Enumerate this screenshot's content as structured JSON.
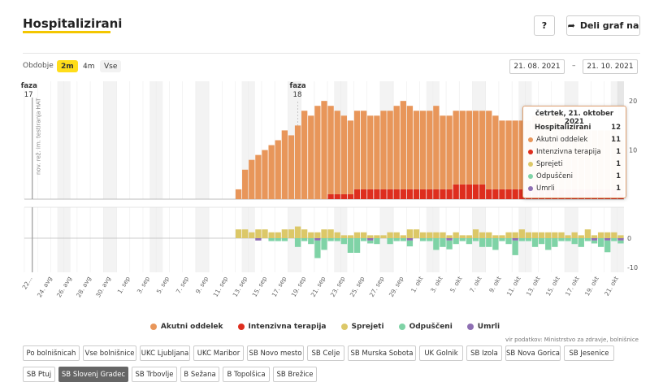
{
  "header": {
    "title": "Hospitalizirani",
    "help_label": "?",
    "share_label": "Deli graf na"
  },
  "controls": {
    "period_label": "Obdobje",
    "periods": [
      "2m",
      "4m",
      "Vse"
    ],
    "date_from": "21. 08. 2021",
    "date_sep": "–",
    "date_to": "21. 10. 2021"
  },
  "annotations": {
    "faza17": "faza 17",
    "faza18": "faza 18",
    "vertical_note": "nov. rež. im. testiranja HAT"
  },
  "colors": {
    "akutni": "#e8965a",
    "intenzivna": "#de2e1e",
    "sprejeti": "#dcc868",
    "odpusceni": "#7fd3a6",
    "umrli": "#8e6fb3"
  },
  "chart_data": {
    "type": "bar",
    "x_labels": [
      "22...",
      "24. avg",
      "26. avg",
      "28. avg",
      "30. avg",
      "1. sep",
      "3. sep",
      "5. sep",
      "7. sep",
      "9. sep",
      "11. sep",
      "13. sep",
      "15. sep",
      "17. sep",
      "19. sep",
      "21. sep",
      "23. sep",
      "25. sep",
      "27. sep",
      "29. sep",
      "1. okt",
      "3. okt",
      "5. okt",
      "7. okt",
      "9. okt",
      "11. okt",
      "13. okt",
      "15. okt",
      "17. okt",
      "19. okt",
      "21. okt"
    ],
    "upper": {
      "y_ticks": [
        0,
        10,
        20
      ],
      "ylim": [
        0,
        20
      ],
      "series": [
        {
          "name": "Akutni oddelek",
          "values": [
            0,
            0,
            0,
            0,
            0,
            0,
            0,
            0,
            0,
            0,
            0,
            0,
            0,
            0,
            0,
            0,
            0,
            0,
            0,
            0,
            0,
            0,
            0,
            0,
            0,
            0,
            0,
            0,
            0,
            0,
            0,
            0,
            2,
            6,
            8,
            9,
            10,
            11,
            12,
            14,
            13,
            15,
            18,
            17,
            19,
            20,
            18,
            17,
            16,
            15,
            16,
            16,
            15,
            15,
            16,
            16,
            17,
            18,
            17,
            16,
            16,
            16,
            17,
            15,
            15,
            15,
            15,
            15,
            15,
            15,
            16,
            15,
            14,
            14,
            14,
            14,
            14,
            15,
            15,
            15,
            16,
            15,
            14,
            13,
            13,
            12,
            12,
            12,
            12,
            12,
            11
          ]
        },
        {
          "name": "Intenzivna terapija",
          "values": [
            0,
            0,
            0,
            0,
            0,
            0,
            0,
            0,
            0,
            0,
            0,
            0,
            0,
            0,
            0,
            0,
            0,
            0,
            0,
            0,
            0,
            0,
            0,
            0,
            0,
            0,
            0,
            0,
            0,
            0,
            0,
            0,
            0,
            0,
            0,
            0,
            0,
            0,
            0,
            0,
            0,
            0,
            0,
            0,
            0,
            0,
            1,
            1,
            1,
            1,
            2,
            2,
            2,
            2,
            2,
            2,
            2,
            2,
            2,
            2,
            2,
            2,
            2,
            2,
            2,
            3,
            3,
            3,
            3,
            3,
            2,
            2,
            2,
            2,
            2,
            2,
            2,
            2,
            2,
            2,
            2,
            2,
            2,
            2,
            2,
            2,
            2,
            2,
            2,
            2,
            1
          ]
        }
      ]
    },
    "lower": {
      "y_ticks": [
        0,
        -10
      ],
      "series": [
        {
          "name": "Sprejeti",
          "values": [
            0,
            0,
            0,
            0,
            0,
            0,
            0,
            0,
            0,
            0,
            0,
            0,
            0,
            0,
            0,
            0,
            0,
            0,
            0,
            0,
            0,
            0,
            0,
            0,
            0,
            0,
            0,
            0,
            0,
            0,
            0,
            0,
            3,
            3,
            2,
            3,
            3,
            2,
            2,
            3,
            3,
            4,
            3,
            2,
            2,
            3,
            3,
            2,
            1,
            1,
            2,
            2,
            1,
            1,
            1,
            2,
            2,
            1,
            3,
            3,
            2,
            2,
            2,
            2,
            1,
            2,
            1,
            1,
            3,
            2,
            2,
            1,
            1,
            2,
            2,
            3,
            2,
            2,
            2,
            2,
            2,
            2,
            1,
            2,
            1,
            3,
            1,
            2,
            2,
            2,
            1
          ]
        },
        {
          "name": "Odpuščeni",
          "values": [
            0,
            0,
            0,
            0,
            0,
            0,
            0,
            0,
            0,
            0,
            0,
            0,
            0,
            0,
            0,
            0,
            0,
            0,
            0,
            0,
            0,
            0,
            0,
            0,
            0,
            0,
            0,
            0,
            0,
            0,
            0,
            0,
            0,
            0,
            0,
            0,
            0,
            -1,
            -1,
            -1,
            0,
            -3,
            -1,
            -2,
            -6,
            -4,
            -1,
            -1,
            -2,
            -5,
            -5,
            -1,
            -1,
            -2,
            0,
            -2,
            -1,
            -1,
            -2,
            0,
            -1,
            -1,
            -4,
            -3,
            -3,
            -2,
            -1,
            -2,
            -1,
            -3,
            -3,
            -4,
            -1,
            -2,
            -5,
            -1,
            -1,
            -3,
            -2,
            -4,
            -3,
            -1,
            -1,
            -2,
            -3,
            -1,
            -1,
            -3,
            -4,
            -1,
            -1
          ]
        },
        {
          "name": "Umrli",
          "values": [
            0,
            0,
            0,
            0,
            0,
            0,
            0,
            0,
            0,
            0,
            0,
            0,
            0,
            0,
            0,
            0,
            0,
            0,
            0,
            0,
            0,
            0,
            0,
            0,
            0,
            0,
            0,
            0,
            0,
            0,
            0,
            0,
            0,
            0,
            0,
            -1,
            0,
            0,
            0,
            0,
            0,
            0,
            0,
            0,
            -1,
            0,
            0,
            0,
            0,
            0,
            0,
            0,
            -1,
            0,
            0,
            0,
            0,
            0,
            -1,
            0,
            0,
            0,
            0,
            0,
            -1,
            0,
            0,
            0,
            0,
            0,
            0,
            0,
            0,
            0,
            -1,
            0,
            0,
            0,
            0,
            0,
            0,
            0,
            0,
            0,
            0,
            0,
            -1,
            0,
            -1,
            0,
            -1
          ]
        }
      ]
    }
  },
  "tooltip": {
    "date": "četrtek, 21. oktober 2021",
    "rows": [
      {
        "label": "Hospitalizirani",
        "value": "12",
        "main": true,
        "color": ""
      },
      {
        "label": "Akutni oddelek",
        "value": "11",
        "main": false,
        "color": "#e8965a"
      },
      {
        "label": "Intenzivna terapija",
        "value": "1",
        "main": false,
        "color": "#de2e1e"
      },
      {
        "label": "Sprejeti",
        "value": "1",
        "main": false,
        "color": "#dcc868"
      },
      {
        "label": "Odpuščeni",
        "value": "1",
        "main": false,
        "color": "#7fd3a6"
      },
      {
        "label": "Umrli",
        "value": "1",
        "main": false,
        "color": "#8e6fb3"
      }
    ]
  },
  "legend": [
    {
      "label": "Akutni oddelek",
      "color": "#e8965a"
    },
    {
      "label": "Intenzivna terapija",
      "color": "#de2e1e"
    },
    {
      "label": "Sprejeti",
      "color": "#dcc868"
    },
    {
      "label": "Odpuščeni",
      "color": "#7fd3a6"
    },
    {
      "label": "Umrli",
      "color": "#8e6fb3"
    }
  ],
  "source": "vir podatkov: Ministrstvo za zdravje, bolnišnice",
  "hospitals": {
    "row1": [
      "Po bolnišnicah",
      "Vse bolnišnice",
      "UKC Ljubljana",
      "UKC Maribor",
      "SB Novo mesto",
      "SB Celje",
      "SB Murska Sobota",
      "UK Golnik",
      "SB Izola",
      "SB Nova Gorica",
      "SB Jesenice"
    ],
    "row2": [
      "SB Ptuj",
      "SB Slovenj Gradec",
      "SB Trbovlje",
      "B Sežana",
      "B Topolšica",
      "SB Brežice"
    ],
    "active": "SB Slovenj Gradec"
  }
}
